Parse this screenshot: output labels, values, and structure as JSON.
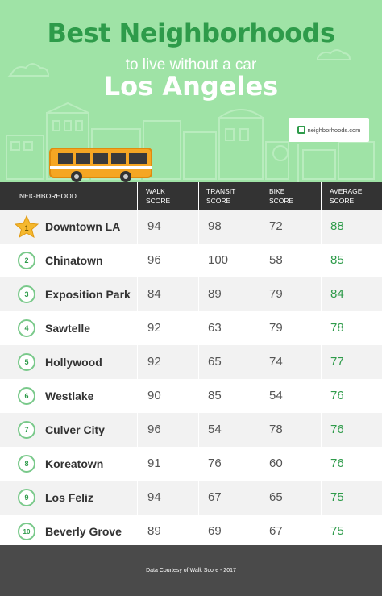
{
  "title": "Best Neighborhoods",
  "subtitle": "to live without a car",
  "city": "Los Angeles",
  "brand": "neighborhoods.com",
  "colors": {
    "hero_bg": "#9fe3a6",
    "title_green": "#2e9b4a",
    "header_bg": "#333333",
    "footer_bg": "#4a4a4a",
    "bus": "#f5a623"
  },
  "columns": {
    "neighborhood": "NEIGHBORHOOD",
    "walk": [
      "WALK",
      "SCORE"
    ],
    "transit": [
      "TRANSIT",
      "SCORE"
    ],
    "bike": [
      "BIKE",
      "SCORE"
    ],
    "average": [
      "AVERAGE",
      "SCORE"
    ]
  },
  "rows": [
    {
      "rank": "1",
      "name": "Downtown LA",
      "walk": "94",
      "transit": "98",
      "bike": "72",
      "average": "88"
    },
    {
      "rank": "2",
      "name": "Chinatown",
      "walk": "96",
      "transit": "100",
      "bike": "58",
      "average": "85"
    },
    {
      "rank": "3",
      "name": "Exposition Park",
      "walk": "84",
      "transit": "89",
      "bike": "79",
      "average": "84"
    },
    {
      "rank": "4",
      "name": "Sawtelle",
      "walk": "92",
      "transit": "63",
      "bike": "79",
      "average": "78"
    },
    {
      "rank": "5",
      "name": "Hollywood",
      "walk": "92",
      "transit": "65",
      "bike": "74",
      "average": "77"
    },
    {
      "rank": "6",
      "name": "Westlake",
      "walk": "90",
      "transit": "85",
      "bike": "54",
      "average": "76"
    },
    {
      "rank": "7",
      "name": "Culver City",
      "walk": "96",
      "transit": "54",
      "bike": "78",
      "average": "76"
    },
    {
      "rank": "8",
      "name": "Koreatown",
      "walk": "91",
      "transit": "76",
      "bike": "60",
      "average": "76"
    },
    {
      "rank": "9",
      "name": "Los Feliz",
      "walk": "94",
      "transit": "67",
      "bike": "65",
      "average": "75"
    },
    {
      "rank": "10",
      "name": "Beverly Grove",
      "walk": "89",
      "transit": "69",
      "bike": "67",
      "average": "75"
    }
  ],
  "footer": "Data Courtesy of Walk Score - 2017"
}
